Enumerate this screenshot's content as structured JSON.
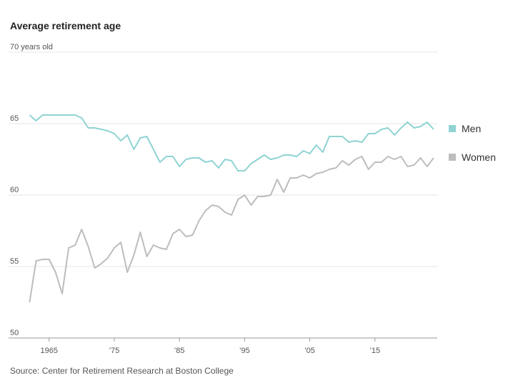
{
  "chart_data": {
    "type": "line",
    "title": "Average retirement age",
    "source": "Source: Center for Retirement Research at Boston College",
    "x": [
      1962,
      1963,
      1964,
      1965,
      1966,
      1967,
      1968,
      1969,
      1970,
      1971,
      1972,
      1973,
      1974,
      1975,
      1976,
      1977,
      1978,
      1979,
      1980,
      1981,
      1982,
      1983,
      1984,
      1985,
      1986,
      1987,
      1988,
      1989,
      1990,
      1991,
      1992,
      1993,
      1994,
      1995,
      1996,
      1997,
      1998,
      1999,
      2000,
      2001,
      2002,
      2003,
      2004,
      2005,
      2006,
      2007,
      2008,
      2009,
      2010,
      2011,
      2012,
      2013,
      2014,
      2015,
      2016,
      2017,
      2018,
      2019,
      2020,
      2021,
      2022,
      2023,
      2024
    ],
    "series": [
      {
        "name": "Men",
        "color": "#8fd3d3",
        "values": [
          65.6,
          65.2,
          65.6,
          65.6,
          65.6,
          65.6,
          65.6,
          65.6,
          65.4,
          64.7,
          64.7,
          64.6,
          64.5,
          64.3,
          63.8,
          64.2,
          63.2,
          64.0,
          64.1,
          63.2,
          62.3,
          62.7,
          62.7,
          62.0,
          62.5,
          62.6,
          62.6,
          62.3,
          62.4,
          61.9,
          62.5,
          62.4,
          61.7,
          61.7,
          62.2,
          62.5,
          62.8,
          62.5,
          62.6,
          62.8,
          62.8,
          62.7,
          63.1,
          62.9,
          63.5,
          63.0,
          64.1,
          64.1,
          64.1,
          63.7,
          63.8,
          63.7,
          64.3,
          64.3,
          64.6,
          64.7,
          64.2,
          64.7,
          65.1,
          64.7,
          64.8,
          65.1,
          64.6
        ]
      },
      {
        "name": "Women",
        "color": "#bdbdbd",
        "values": [
          52.5,
          55.4,
          55.5,
          55.5,
          54.6,
          53.1,
          56.3,
          56.5,
          57.6,
          56.4,
          54.9,
          55.2,
          55.6,
          56.3,
          56.7,
          54.6,
          55.8,
          57.4,
          55.7,
          56.5,
          56.3,
          56.2,
          57.3,
          57.6,
          57.1,
          57.2,
          58.2,
          58.9,
          59.3,
          59.2,
          58.8,
          58.6,
          59.7,
          60.0,
          59.3,
          59.9,
          59.9,
          60.0,
          61.1,
          60.2,
          61.2,
          61.2,
          61.4,
          61.2,
          61.5,
          61.6,
          61.8,
          61.9,
          62.4,
          62.1,
          62.5,
          62.7,
          61.8,
          62.3,
          62.3,
          62.7,
          62.5,
          62.7,
          62.0,
          62.1,
          62.6,
          62.0,
          62.6
        ]
      }
    ],
    "xlim": [
      1959,
      2025
    ],
    "xticks": [
      1965,
      {
        "value": 1975,
        "label": "’75"
      },
      {
        "value": 1985,
        "label": "’85"
      },
      {
        "value": 1995,
        "label": "’95"
      },
      {
        "value": 2005,
        "label": "’05"
      },
      {
        "value": 2015,
        "label": "’15"
      }
    ],
    "ylim": [
      50,
      70
    ],
    "yticks": [
      50,
      55,
      60,
      65,
      {
        "value": 70,
        "label": "70 years old"
      }
    ],
    "grid": true,
    "legend": "right"
  }
}
